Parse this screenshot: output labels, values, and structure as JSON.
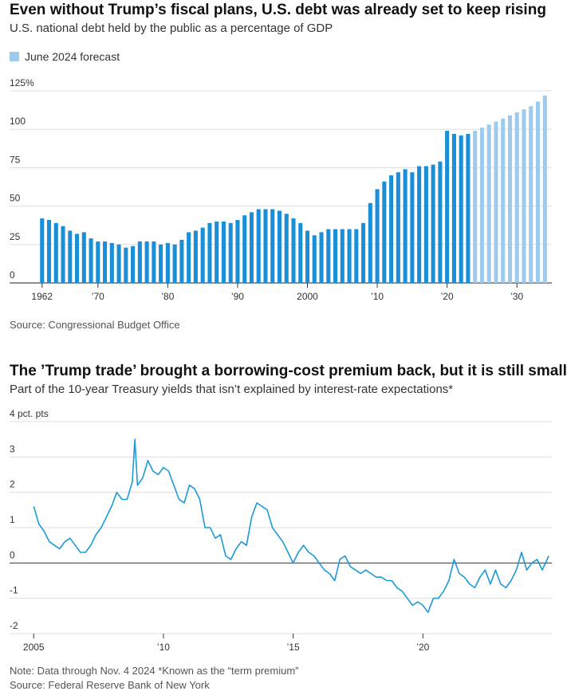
{
  "chart_data": [
    {
      "type": "bar",
      "title": "Even without Trump’s fiscal plans, U.S. debt was already set to keep rising",
      "subtitle": "U.S. national debt held by the public as a percentage of GDP",
      "source": "Source: Congressional Budget Office",
      "x": [
        1962,
        1963,
        1964,
        1965,
        1966,
        1967,
        1968,
        1969,
        1970,
        1971,
        1972,
        1973,
        1974,
        1975,
        1976,
        1977,
        1978,
        1979,
        1980,
        1981,
        1982,
        1983,
        1984,
        1985,
        1986,
        1987,
        1988,
        1989,
        1990,
        1991,
        1992,
        1993,
        1994,
        1995,
        1996,
        1997,
        1998,
        1999,
        2000,
        2001,
        2002,
        2003,
        2004,
        2005,
        2006,
        2007,
        2008,
        2009,
        2010,
        2011,
        2012,
        2013,
        2014,
        2015,
        2016,
        2017,
        2018,
        2019,
        2020,
        2021,
        2022,
        2023,
        2024,
        2025,
        2026,
        2027,
        2028,
        2029,
        2030,
        2031,
        2032,
        2033,
        2034
      ],
      "series": [
        {
          "color": "#1a8fd8",
          "values": [
            42,
            41,
            39,
            37,
            34,
            32,
            33,
            29,
            27,
            27,
            26,
            25,
            23,
            24,
            27,
            27,
            27,
            25,
            26,
            25,
            28,
            33,
            34,
            36,
            39,
            40,
            40,
            39,
            41,
            44,
            46,
            48,
            48,
            48,
            47,
            45,
            42,
            39,
            34,
            31,
            33,
            35,
            35,
            35,
            35,
            35,
            39,
            52,
            61,
            66,
            70,
            72,
            74,
            72,
            76,
            76,
            77,
            79,
            99,
            97,
            96,
            97,
            null,
            null,
            null,
            null,
            null,
            null,
            null,
            null,
            null,
            null,
            null
          ]
        },
        {
          "name": "June 2024 forecast",
          "color": "#9ccbee",
          "values": [
            null,
            null,
            null,
            null,
            null,
            null,
            null,
            null,
            null,
            null,
            null,
            null,
            null,
            null,
            null,
            null,
            null,
            null,
            null,
            null,
            null,
            null,
            null,
            null,
            null,
            null,
            null,
            null,
            null,
            null,
            null,
            null,
            null,
            null,
            null,
            null,
            null,
            null,
            null,
            null,
            null,
            null,
            null,
            null,
            null,
            null,
            null,
            null,
            null,
            null,
            null,
            null,
            null,
            null,
            null,
            null,
            null,
            null,
            null,
            null,
            null,
            null,
            99,
            101,
            103,
            105,
            107,
            109,
            111,
            113,
            115,
            118,
            122
          ]
        }
      ],
      "xlim": [
        1961,
        2035
      ],
      "xticks": [
        {
          "value": 1962,
          "label": "1962"
        },
        {
          "value": 1970,
          "label": "’70"
        },
        {
          "value": 1980,
          "label": "’80"
        },
        {
          "value": 1990,
          "label": "’90"
        },
        2000,
        {
          "value": 2010,
          "label": "’10"
        },
        {
          "value": 2020,
          "label": "’20"
        },
        {
          "value": 2030,
          "label": "’30"
        }
      ],
      "ylim": [
        0,
        125
      ],
      "yticks": [
        0,
        25,
        50,
        75,
        100,
        {
          "value": 125,
          "label": "125%"
        }
      ],
      "grid": true
    },
    {
      "type": "line",
      "title": "The ’Trump trade’ brought a borrowing-cost premium back, but it is still small",
      "subtitle": "Part of the 10-year Treasury yields that isn’t explained by interest-rate expectations*",
      "note": "Note: Data through Nov. 4 2024 *Known as the “term premium”",
      "source": "Source: Federal Reserve Bank of New York",
      "series": [
        {
          "color": "#1a9ad8",
          "x": [
            2005.0,
            2005.2,
            2005.4,
            2005.6,
            2005.8,
            2006.0,
            2006.2,
            2006.4,
            2006.6,
            2006.8,
            2007.0,
            2007.2,
            2007.4,
            2007.6,
            2007.8,
            2008.0,
            2008.2,
            2008.4,
            2008.6,
            2008.8,
            2008.9,
            2009.0,
            2009.2,
            2009.4,
            2009.6,
            2009.8,
            2010.0,
            2010.2,
            2010.4,
            2010.6,
            2010.8,
            2011.0,
            2011.2,
            2011.4,
            2011.6,
            2011.8,
            2012.0,
            2012.2,
            2012.4,
            2012.6,
            2012.8,
            2013.0,
            2013.2,
            2013.4,
            2013.6,
            2013.8,
            2014.0,
            2014.2,
            2014.4,
            2014.6,
            2014.8,
            2015.0,
            2015.2,
            2015.4,
            2015.6,
            2015.8,
            2016.0,
            2016.2,
            2016.4,
            2016.6,
            2016.8,
            2017.0,
            2017.2,
            2017.4,
            2017.6,
            2017.8,
            2018.0,
            2018.2,
            2018.4,
            2018.6,
            2018.8,
            2019.0,
            2019.2,
            2019.4,
            2019.6,
            2019.8,
            2020.0,
            2020.2,
            2020.4,
            2020.6,
            2020.8,
            2021.0,
            2021.2,
            2021.4,
            2021.6,
            2021.8,
            2022.0,
            2022.2,
            2022.4,
            2022.6,
            2022.8,
            2023.0,
            2023.2,
            2023.4,
            2023.6,
            2023.8,
            2024.0,
            2024.2,
            2024.4,
            2024.6,
            2024.85
          ],
          "values": [
            1.6,
            1.1,
            0.9,
            0.6,
            0.5,
            0.4,
            0.6,
            0.7,
            0.5,
            0.3,
            0.3,
            0.5,
            0.8,
            1.0,
            1.3,
            1.6,
            2.0,
            1.8,
            1.8,
            2.3,
            3.5,
            2.2,
            2.4,
            2.9,
            2.6,
            2.5,
            2.7,
            2.6,
            2.2,
            1.8,
            1.7,
            2.2,
            2.1,
            1.8,
            1.0,
            1.0,
            0.7,
            0.8,
            0.2,
            0.1,
            0.4,
            0.6,
            0.5,
            1.3,
            1.7,
            1.6,
            1.5,
            1.0,
            0.8,
            0.6,
            0.3,
            0.0,
            0.3,
            0.5,
            0.3,
            0.2,
            0.0,
            -0.2,
            -0.3,
            -0.5,
            0.1,
            0.2,
            -0.1,
            -0.2,
            -0.3,
            -0.2,
            -0.3,
            -0.4,
            -0.4,
            -0.5,
            -0.5,
            -0.7,
            -0.8,
            -1.0,
            -1.2,
            -1.1,
            -1.2,
            -1.4,
            -1.0,
            -1.0,
            -0.8,
            -0.5,
            0.1,
            -0.3,
            -0.4,
            -0.6,
            -0.7,
            -0.4,
            -0.2,
            -0.6,
            -0.2,
            -0.6,
            -0.7,
            -0.5,
            -0.2,
            0.3,
            -0.2,
            0.0,
            0.1,
            -0.2,
            0.2
          ]
        }
      ],
      "xlim": [
        2004.9,
        2025
      ],
      "xticks": [
        2005,
        {
          "value": 2010,
          "label": "’10"
        },
        {
          "value": 2015,
          "label": "’15"
        },
        {
          "value": 2020,
          "label": "’20"
        }
      ],
      "ylim": [
        -2,
        4
      ],
      "yticks": [
        -2,
        -1,
        0,
        1,
        2,
        3,
        {
          "value": 4,
          "label": "4 pct. pts"
        }
      ],
      "grid": true
    }
  ]
}
